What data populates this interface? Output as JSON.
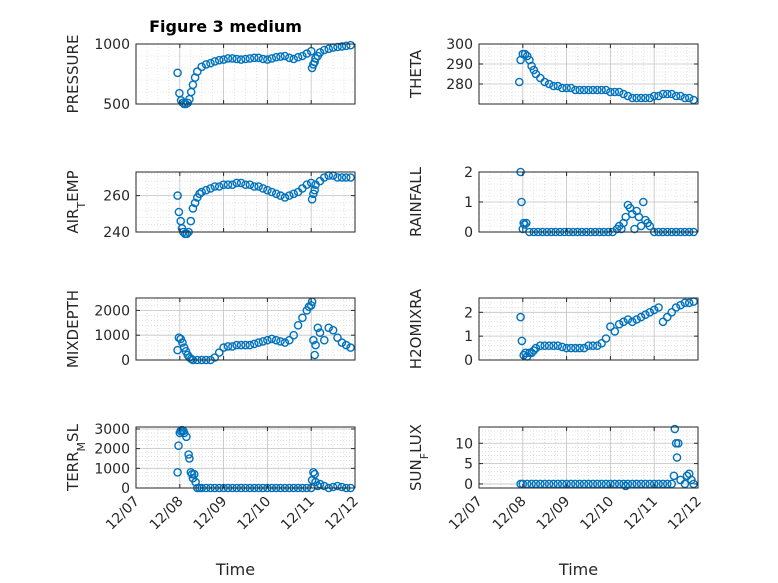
{
  "figure_title": "Figure 3 medium",
  "colors": {
    "marker": "#0072BD",
    "axes": "#262626",
    "grid": "#cfcfcf"
  },
  "chart_data": [
    {
      "type": "scatter",
      "title": "Figure 3 medium",
      "ylabel": "PRESSURE",
      "xlabel": "",
      "xlim": [
        0,
        5
      ],
      "ylim": [
        500,
        1000
      ],
      "yticks": [
        500,
        1000
      ],
      "ytick_labels": [
        "500",
        "1000"
      ],
      "xticks": [
        0,
        1,
        2,
        3,
        4,
        5
      ],
      "xtick_labels": [
        "12/07",
        "12/08",
        "12/09",
        "12/10",
        "12/11",
        "12/12"
      ],
      "show_xticklabels": false,
      "grid": true,
      "x": [
        0.95,
        0.99,
        1.03,
        1.07,
        1.1,
        1.14,
        1.18,
        1.22,
        1.26,
        1.3,
        1.35,
        1.4,
        1.5,
        1.6,
        1.7,
        1.8,
        1.9,
        2.0,
        2.1,
        2.2,
        2.3,
        2.4,
        2.5,
        2.6,
        2.7,
        2.8,
        2.9,
        3.0,
        3.1,
        3.2,
        3.3,
        3.4,
        3.5,
        3.6,
        3.7,
        3.8,
        3.9,
        4.0,
        4.02,
        4.05,
        4.08,
        4.1,
        4.15,
        4.2,
        4.3,
        4.4,
        4.5,
        4.6,
        4.7,
        4.8,
        4.9
      ],
      "y": [
        760,
        590,
        530,
        510,
        500,
        500,
        510,
        540,
        600,
        660,
        720,
        770,
        810,
        830,
        840,
        855,
        865,
        870,
        880,
        880,
        875,
        870,
        875,
        880,
        885,
        885,
        875,
        870,
        880,
        890,
        895,
        900,
        885,
        875,
        890,
        900,
        920,
        940,
        800,
        830,
        850,
        880,
        900,
        930,
        950,
        960,
        970,
        975,
        980,
        985,
        990
      ]
    },
    {
      "type": "scatter",
      "title": "",
      "ylabel": "THETA",
      "xlabel": "",
      "xlim": [
        0,
        5
      ],
      "ylim": [
        270,
        300
      ],
      "yticks": [
        280,
        290,
        300
      ],
      "ytick_labels": [
        "280",
        "290",
        "300"
      ],
      "xticks": [
        0,
        1,
        2,
        3,
        4,
        5
      ],
      "xtick_labels": [
        "12/07",
        "12/08",
        "12/09",
        "12/10",
        "12/11",
        "12/12"
      ],
      "show_xticklabels": false,
      "grid": true,
      "x": [
        0.92,
        0.95,
        1.0,
        1.05,
        1.1,
        1.15,
        1.2,
        1.25,
        1.3,
        1.4,
        1.5,
        1.6,
        1.7,
        1.8,
        1.9,
        2.0,
        2.1,
        2.2,
        2.3,
        2.4,
        2.5,
        2.6,
        2.7,
        2.8,
        2.9,
        3.0,
        3.1,
        3.2,
        3.3,
        3.4,
        3.5,
        3.6,
        3.7,
        3.8,
        3.9,
        4.0,
        4.1,
        4.2,
        4.3,
        4.4,
        4.5,
        4.6,
        4.7,
        4.8,
        4.9
      ],
      "y": [
        281,
        292,
        295,
        295,
        294,
        292,
        289,
        287,
        285,
        283,
        281,
        280,
        279,
        279,
        278,
        278,
        278,
        277,
        277,
        277,
        277,
        277,
        277,
        277,
        277,
        276,
        276,
        276,
        275,
        274,
        273,
        273,
        273,
        273,
        273,
        274,
        274,
        275,
        275,
        275,
        274,
        274,
        273,
        273,
        272
      ]
    },
    {
      "type": "scatter",
      "title": "",
      "ylabel": "AIR_TEMP",
      "xlabel": "",
      "xlim": [
        0,
        5
      ],
      "ylim": [
        240,
        273
      ],
      "yticks": [
        240,
        260
      ],
      "ytick_labels": [
        "240",
        "260"
      ],
      "xticks": [
        0,
        1,
        2,
        3,
        4,
        5
      ],
      "xtick_labels": [
        "12/07",
        "12/08",
        "12/09",
        "12/10",
        "12/11",
        "12/12"
      ],
      "show_xticklabels": false,
      "grid": true,
      "x": [
        0.95,
        0.98,
        1.02,
        1.05,
        1.08,
        1.12,
        1.16,
        1.2,
        1.25,
        1.3,
        1.35,
        1.4,
        1.45,
        1.5,
        1.6,
        1.7,
        1.8,
        1.9,
        2.0,
        2.1,
        2.2,
        2.3,
        2.4,
        2.5,
        2.6,
        2.7,
        2.8,
        2.9,
        3.0,
        3.1,
        3.2,
        3.3,
        3.4,
        3.5,
        3.6,
        3.7,
        3.8,
        3.9,
        4.0,
        4.02,
        4.05,
        4.08,
        4.1,
        4.2,
        4.3,
        4.4,
        4.5,
        4.6,
        4.7,
        4.8,
        4.9
      ],
      "y": [
        260,
        251,
        246,
        242,
        240,
        239,
        239,
        240,
        246,
        253,
        256,
        259,
        261,
        262,
        263,
        264,
        265,
        265,
        266,
        266,
        266,
        267,
        267,
        266,
        266,
        265,
        265,
        264,
        263,
        262,
        261,
        260,
        259,
        260,
        261,
        262,
        264,
        266,
        267,
        258,
        261,
        263,
        266,
        268,
        270,
        271,
        271,
        270,
        270,
        270,
        270
      ]
    },
    {
      "type": "scatter",
      "title": "",
      "ylabel": "RAINFALL",
      "xlabel": "",
      "xlim": [
        0,
        5
      ],
      "ylim": [
        0,
        2
      ],
      "yticks": [
        0,
        1,
        2
      ],
      "ytick_labels": [
        "0",
        "1",
        "2"
      ],
      "xticks": [
        0,
        1,
        2,
        3,
        4,
        5
      ],
      "xtick_labels": [
        "12/07",
        "12/08",
        "12/09",
        "12/10",
        "12/11",
        "12/12"
      ],
      "show_xticklabels": false,
      "grid": true,
      "x": [
        0.95,
        0.97,
        1.0,
        1.02,
        1.04,
        1.08,
        1.15,
        1.25,
        1.35,
        1.45,
        1.55,
        1.65,
        1.75,
        1.85,
        1.95,
        2.05,
        2.15,
        2.25,
        2.35,
        2.45,
        2.55,
        2.65,
        2.75,
        2.85,
        2.95,
        3.05,
        3.15,
        3.2,
        3.25,
        3.3,
        3.35,
        3.4,
        3.45,
        3.5,
        3.55,
        3.6,
        3.65,
        3.7,
        3.75,
        3.8,
        3.85,
        3.9,
        4.0,
        4.1,
        4.2,
        4.3,
        4.4,
        4.5,
        4.6,
        4.7,
        4.8,
        4.9
      ],
      "y": [
        2.0,
        1.0,
        0.1,
        0.3,
        0.25,
        0.3,
        0,
        0,
        0,
        0,
        0,
        0,
        0,
        0,
        0,
        0,
        0,
        0,
        0,
        0,
        0,
        0,
        0,
        0,
        0,
        0,
        0.1,
        0.2,
        0.1,
        0.3,
        0.5,
        0.9,
        0.8,
        0.6,
        0.1,
        0.7,
        0.5,
        0.2,
        1.0,
        0.4,
        0.3,
        0.2,
        0,
        0,
        0,
        0,
        0,
        0,
        0,
        0,
        0,
        0
      ]
    },
    {
      "type": "scatter",
      "title": "",
      "ylabel": "MIXDEPTH",
      "xlabel": "",
      "xlim": [
        0,
        5
      ],
      "ylim": [
        0,
        2500
      ],
      "yticks": [
        0,
        1000,
        2000
      ],
      "ytick_labels": [
        "0",
        "1000",
        "2000"
      ],
      "xticks": [
        0,
        1,
        2,
        3,
        4,
        5
      ],
      "xtick_labels": [
        "12/07",
        "12/08",
        "12/09",
        "12/10",
        "12/11",
        "12/12"
      ],
      "show_xticklabels": false,
      "grid": true,
      "x": [
        0.95,
        0.98,
        1.02,
        1.06,
        1.1,
        1.14,
        1.18,
        1.22,
        1.26,
        1.3,
        1.4,
        1.5,
        1.6,
        1.7,
        1.8,
        1.9,
        2.0,
        2.1,
        2.2,
        2.3,
        2.4,
        2.5,
        2.6,
        2.7,
        2.8,
        2.9,
        3.0,
        3.1,
        3.2,
        3.3,
        3.4,
        3.5,
        3.6,
        3.7,
        3.8,
        3.9,
        3.95,
        4.0,
        4.02,
        4.05,
        4.08,
        4.1,
        4.15,
        4.2,
        4.3,
        4.4,
        4.5,
        4.6,
        4.7,
        4.8,
        4.9
      ],
      "y": [
        400,
        900,
        850,
        700,
        500,
        350,
        200,
        100,
        50,
        0,
        0,
        0,
        0,
        0,
        100,
        300,
        500,
        550,
        550,
        600,
        600,
        600,
        600,
        650,
        700,
        750,
        800,
        850,
        800,
        750,
        700,
        800,
        1000,
        1400,
        1700,
        2000,
        2150,
        2200,
        2350,
        800,
        200,
        600,
        1300,
        1100,
        800,
        1300,
        1200,
        900,
        700,
        600,
        500
      ]
    },
    {
      "type": "scatter",
      "title": "",
      "ylabel": "H2OMIXRA",
      "xlabel": "",
      "xlim": [
        0,
        5
      ],
      "ylim": [
        0,
        2.6
      ],
      "yticks": [
        0,
        1,
        2
      ],
      "ytick_labels": [
        "0",
        "1",
        "2"
      ],
      "xticks": [
        0,
        1,
        2,
        3,
        4,
        5
      ],
      "xtick_labels": [
        "12/07",
        "12/08",
        "12/09",
        "12/10",
        "12/11",
        "12/12"
      ],
      "show_xticklabels": false,
      "grid": true,
      "x": [
        0.95,
        0.98,
        1.02,
        1.06,
        1.1,
        1.15,
        1.2,
        1.25,
        1.3,
        1.4,
        1.5,
        1.6,
        1.7,
        1.8,
        1.9,
        2.0,
        2.1,
        2.2,
        2.3,
        2.4,
        2.5,
        2.6,
        2.7,
        2.8,
        2.9,
        3.0,
        3.1,
        3.2,
        3.3,
        3.4,
        3.5,
        3.6,
        3.7,
        3.8,
        3.9,
        4.0,
        4.1,
        4.2,
        4.3,
        4.4,
        4.5,
        4.6,
        4.7,
        4.8,
        4.9
      ],
      "y": [
        1.8,
        0.8,
        0.2,
        0.3,
        0.15,
        0.3,
        0.3,
        0.4,
        0.5,
        0.6,
        0.6,
        0.6,
        0.6,
        0.6,
        0.55,
        0.5,
        0.5,
        0.5,
        0.5,
        0.5,
        0.6,
        0.6,
        0.6,
        0.7,
        0.9,
        1.4,
        1.2,
        1.5,
        1.6,
        1.7,
        1.6,
        1.7,
        1.8,
        1.9,
        2.0,
        2.1,
        2.2,
        1.6,
        1.8,
        2.0,
        2.2,
        2.3,
        2.4,
        2.4,
        2.45
      ]
    },
    {
      "type": "scatter",
      "title": "",
      "ylabel": "TERR_MSL",
      "xlabel": "Time",
      "xlim": [
        0,
        5
      ],
      "ylim": [
        0,
        3100
      ],
      "yticks": [
        0,
        1000,
        2000,
        3000
      ],
      "ytick_labels": [
        "0",
        "1000",
        "2000",
        "3000"
      ],
      "xticks": [
        0,
        1,
        2,
        3,
        4,
        5
      ],
      "xtick_labels": [
        "12/07",
        "12/08",
        "12/09",
        "12/10",
        "12/11",
        "12/12"
      ],
      "show_xticklabels": true,
      "grid": true,
      "x": [
        0.95,
        0.97,
        1.0,
        1.02,
        1.05,
        1.08,
        1.1,
        1.15,
        1.2,
        1.22,
        1.25,
        1.28,
        1.3,
        1.33,
        1.36,
        1.4,
        1.45,
        1.5,
        1.6,
        1.7,
        1.8,
        1.9,
        2.0,
        2.1,
        2.2,
        2.3,
        2.4,
        2.5,
        2.6,
        2.7,
        2.8,
        2.9,
        3.0,
        3.1,
        3.2,
        3.3,
        3.4,
        3.5,
        3.6,
        3.7,
        3.8,
        3.9,
        4.0,
        4.02,
        4.05,
        4.08,
        4.1,
        4.15,
        4.2,
        4.3,
        4.4,
        4.5,
        4.6,
        4.7,
        4.8,
        4.9
      ],
      "y": [
        800,
        2150,
        2800,
        2900,
        2950,
        2900,
        2800,
        2600,
        1700,
        1500,
        800,
        700,
        500,
        700,
        300,
        0,
        0,
        0,
        0,
        0,
        0,
        0,
        0,
        0,
        0,
        0,
        0,
        0,
        0,
        0,
        0,
        0,
        0,
        0,
        0,
        0,
        0,
        0,
        0,
        0,
        0,
        0,
        0,
        400,
        800,
        700,
        300,
        100,
        200,
        100,
        0,
        50,
        100,
        50,
        0,
        0
      ]
    },
    {
      "type": "scatter",
      "title": "",
      "ylabel": "SUN_FLUX",
      "xlabel": "Time",
      "xlim": [
        0,
        5
      ],
      "ylim": [
        -1,
        14
      ],
      "yticks": [
        0,
        5,
        10
      ],
      "ytick_labels": [
        "0",
        "5",
        "10"
      ],
      "xticks": [
        0,
        1,
        2,
        3,
        4,
        5
      ],
      "xtick_labels": [
        "12/07",
        "12/08",
        "12/09",
        "12/10",
        "12/11",
        "12/12"
      ],
      "show_xticklabels": true,
      "grid": true,
      "x": [
        0.95,
        1.0,
        1.1,
        1.2,
        1.3,
        1.4,
        1.5,
        1.6,
        1.7,
        1.8,
        1.9,
        2.0,
        2.1,
        2.2,
        2.3,
        2.4,
        2.5,
        2.6,
        2.7,
        2.8,
        2.9,
        3.0,
        3.1,
        3.2,
        3.3,
        3.35,
        3.4,
        3.5,
        3.6,
        3.7,
        3.8,
        3.9,
        4.0,
        4.1,
        4.2,
        4.3,
        4.4,
        4.45,
        4.47,
        4.5,
        4.52,
        4.55,
        4.6,
        4.7,
        4.75,
        4.8,
        4.85,
        4.9
      ],
      "y": [
        0,
        0,
        0,
        0,
        0,
        0,
        0,
        0,
        0,
        0,
        0,
        0,
        0,
        0,
        0,
        0,
        0,
        0,
        0,
        0,
        0,
        0,
        0,
        0,
        0,
        -0.5,
        0,
        0,
        0,
        0,
        0,
        0,
        0,
        0,
        0,
        0,
        0,
        2,
        13.5,
        10,
        6.5,
        10,
        1,
        0,
        2,
        2.5,
        1,
        0
      ]
    }
  ]
}
